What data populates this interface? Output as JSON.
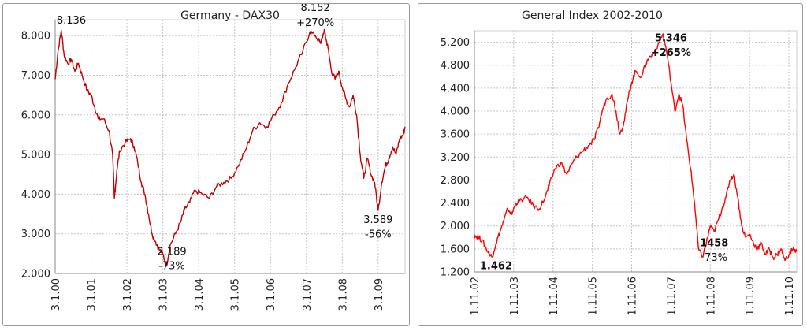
{
  "chart_data": [
    {
      "type": "line",
      "title": "Germany - DAX30",
      "color": "#c00000",
      "ylim": [
        2000,
        8400
      ],
      "yticks": [
        "2.000",
        "3.000",
        "4.000",
        "5.000",
        "6.000",
        "7.000",
        "8.000"
      ],
      "ytick_values": [
        2000,
        3000,
        4000,
        5000,
        6000,
        7000,
        8000
      ],
      "xticks": [
        "3.1.00",
        "3.1.01",
        "3.1.02",
        "3.1.03",
        "3.1.04",
        "3.1.05",
        "3.1.06",
        "3.1.07",
        "3.1.08",
        "3.1.09"
      ],
      "xlim": [
        0,
        9.75
      ],
      "grid": true,
      "series": [
        {
          "x": [
            0,
            0.08,
            0.17,
            0.25,
            0.35,
            0.45,
            0.55,
            0.65,
            0.75,
            0.9,
            1.0,
            1.1,
            1.2,
            1.35,
            1.5,
            1.6,
            1.65,
            1.72,
            1.8,
            1.95,
            2.1,
            2.2,
            2.3,
            2.4,
            2.5,
            2.6,
            2.7,
            2.8,
            2.9,
            3.0,
            3.1,
            3.2,
            3.35,
            3.5,
            3.6,
            3.75,
            3.9,
            4.1,
            4.3,
            4.5,
            4.7,
            4.9,
            5.1,
            5.3,
            5.5,
            5.7,
            5.9,
            6.1,
            6.3,
            6.5,
            6.7,
            6.9,
            7.1,
            7.25,
            7.4,
            7.5,
            7.55,
            7.6,
            7.7,
            7.8,
            7.9,
            8.0,
            8.1,
            8.2,
            8.3,
            8.4,
            8.5,
            8.6,
            8.7,
            8.8,
            8.9,
            9.0,
            9.1,
            9.2,
            9.3,
            9.4,
            9.5,
            9.6,
            9.7,
            9.75
          ],
          "y": [
            6900,
            7600,
            8136,
            7500,
            7300,
            7400,
            7100,
            7300,
            7000,
            6600,
            6500,
            6200,
            5900,
            5900,
            5600,
            5000,
            3900,
            4600,
            5100,
            5300,
            5400,
            5200,
            4800,
            4300,
            4000,
            3500,
            3000,
            2800,
            2600,
            2500,
            2189,
            2700,
            3000,
            3300,
            3600,
            3800,
            4100,
            4000,
            3900,
            4200,
            4300,
            4400,
            4700,
            5100,
            5600,
            5800,
            5700,
            6000,
            6300,
            6800,
            7200,
            7600,
            8100,
            8000,
            7800,
            8152,
            7900,
            7700,
            7100,
            6900,
            7100,
            6700,
            6400,
            6200,
            6500,
            6000,
            5000,
            4400,
            4900,
            4500,
            4300,
            3589,
            4300,
            4700,
            4900,
            5200,
            5000,
            5400,
            5500,
            5700
          ]
        }
      ],
      "annotations": [
        {
          "text": "8.136",
          "x": 0.45,
          "y": 8300
        },
        {
          "text": "8.152",
          "x": 7.25,
          "y": 8620
        },
        {
          "text": "+270%",
          "x": 7.25,
          "y": 8240
        },
        {
          "text": "2.189",
          "x": 3.25,
          "y": 2470
        },
        {
          "text": "-73%",
          "x": 3.25,
          "y": 2110
        },
        {
          "text": "3.589",
          "x": 9.0,
          "y": 3270
        },
        {
          "text": "-56%",
          "x": 9.0,
          "y": 2900
        }
      ]
    },
    {
      "type": "line",
      "title": "General Index 2002-2010",
      "color": "#ff0000",
      "ylim": [
        1200,
        5400
      ],
      "yticks": [
        "1.200",
        "1.600",
        "2.000",
        "2.400",
        "2.800",
        "3.200",
        "3.600",
        "4.000",
        "4.400",
        "4.800",
        "5.200"
      ],
      "ytick_values": [
        1200,
        1600,
        2000,
        2400,
        2800,
        3200,
        3600,
        4000,
        4400,
        4800,
        5200
      ],
      "xticks": [
        "1.11.02",
        "1.11.03",
        "1.11.04",
        "1.11.05",
        "1.11.06",
        "1.11.07",
        "1.11.08",
        "1.11.09",
        "1.11.10"
      ],
      "xlim": [
        0,
        8.2
      ],
      "grid": true,
      "series": [
        {
          "x": [
            0,
            0.1,
            0.2,
            0.3,
            0.4,
            0.45,
            0.55,
            0.65,
            0.75,
            0.85,
            0.95,
            1.05,
            1.2,
            1.35,
            1.5,
            1.65,
            1.8,
            1.9,
            2.05,
            2.2,
            2.35,
            2.5,
            2.6,
            2.75,
            2.9,
            3.05,
            3.15,
            3.25,
            3.35,
            3.5,
            3.6,
            3.7,
            3.8,
            3.9,
            4.0,
            4.1,
            4.25,
            4.4,
            4.55,
            4.7,
            4.8,
            4.9,
            5.0,
            5.1,
            5.2,
            5.3,
            5.4,
            5.5,
            5.6,
            5.7,
            5.8,
            5.9,
            6.0,
            6.1,
            6.2,
            6.3,
            6.4,
            6.5,
            6.6,
            6.7,
            6.8,
            6.9,
            7.0,
            7.1,
            7.2,
            7.3,
            7.4,
            7.5,
            7.6,
            7.7,
            7.8,
            7.9,
            8.0,
            8.1,
            8.2
          ],
          "y": [
            1850,
            1800,
            1750,
            1600,
            1500,
            1462,
            1700,
            1900,
            2100,
            2300,
            2200,
            2400,
            2450,
            2500,
            2350,
            2300,
            2500,
            2700,
            3000,
            3100,
            2900,
            3100,
            3200,
            3300,
            3400,
            3500,
            3700,
            4000,
            4200,
            4300,
            4000,
            3600,
            3800,
            4200,
            4500,
            4700,
            4600,
            4900,
            5000,
            5200,
            5346,
            5000,
            4500,
            4000,
            4300,
            4100,
            3500,
            3000,
            2400,
            1600,
            1458,
            1700,
            2000,
            1900,
            2100,
            2300,
            2500,
            2800,
            2900,
            2500,
            2000,
            1800,
            1850,
            1700,
            1600,
            1700,
            1500,
            1600,
            1450,
            1500,
            1600,
            1400,
            1500,
            1600,
            1550
          ]
        }
      ],
      "annotations": [
        {
          "text": "5.346",
          "x": 5.0,
          "y": 5215,
          "bold": true
        },
        {
          "text": "+265%",
          "x": 5.0,
          "y": 4960,
          "bold": true
        },
        {
          "text": "1.462",
          "x": 0.55,
          "y": 1245,
          "bold": true
        },
        {
          "text": "1458",
          "x": 6.1,
          "y": 1645,
          "bold": true
        },
        {
          "text": "-73%",
          "x": 6.1,
          "y": 1390,
          "bold": false
        }
      ]
    }
  ]
}
